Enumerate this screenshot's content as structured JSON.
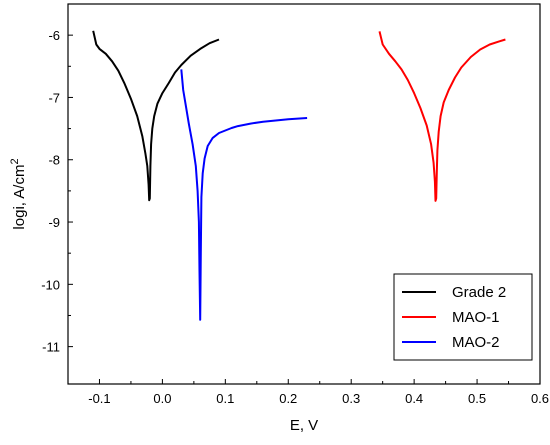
{
  "chart_data": {
    "type": "line",
    "xlabel": "E, V",
    "ylabel": "logi, A/cm",
    "ylabel_sup": "2",
    "xlim": [
      -0.15,
      0.6
    ],
    "ylim": [
      -11.6,
      -5.5
    ],
    "xticks": [
      -0.1,
      0,
      0.1,
      0.2,
      0.3,
      0.4,
      0.5,
      0.6
    ],
    "xtick_labels": [
      "-0.1",
      "0.0",
      "0.1",
      "0.2",
      "0.3",
      "0.4",
      "0.5",
      "0.6"
    ],
    "yticks": [
      -11,
      -10,
      -9,
      -8,
      -7,
      -6
    ],
    "ytick_labels": [
      "-11",
      "-10",
      "-9",
      "-8",
      "-7",
      "-6"
    ],
    "grid": false,
    "legend_position": "bottom-right",
    "series": [
      {
        "name": "Grade 2",
        "color": "#000000",
        "x": [
          -0.11,
          -0.105,
          -0.1,
          -0.09,
          -0.08,
          -0.07,
          -0.06,
          -0.05,
          -0.04,
          -0.032,
          -0.027,
          -0.024,
          -0.022,
          -0.021,
          -0.02,
          -0.019,
          -0.018,
          -0.016,
          -0.013,
          -0.008,
          0.0,
          0.01,
          0.02,
          0.03,
          0.045,
          0.06,
          0.075,
          0.09
        ],
        "y": [
          -5.93,
          -6.15,
          -6.22,
          -6.3,
          -6.42,
          -6.57,
          -6.78,
          -7.02,
          -7.3,
          -7.62,
          -7.9,
          -8.1,
          -8.4,
          -8.65,
          -8.62,
          -8.1,
          -7.75,
          -7.5,
          -7.3,
          -7.1,
          -6.93,
          -6.77,
          -6.6,
          -6.48,
          -6.33,
          -6.22,
          -6.13,
          -6.07
        ]
      },
      {
        "name": "MAO-1",
        "color": "#ff0000",
        "x": [
          0.345,
          0.35,
          0.36,
          0.37,
          0.38,
          0.39,
          0.4,
          0.41,
          0.42,
          0.427,
          0.431,
          0.433,
          0.434,
          0.435,
          0.436,
          0.437,
          0.439,
          0.442,
          0.447,
          0.455,
          0.465,
          0.475,
          0.49,
          0.505,
          0.52,
          0.535,
          0.545
        ],
        "y": [
          -5.94,
          -6.15,
          -6.3,
          -6.42,
          -6.55,
          -6.72,
          -6.93,
          -7.17,
          -7.45,
          -7.75,
          -8.05,
          -8.35,
          -8.66,
          -8.62,
          -8.2,
          -7.85,
          -7.55,
          -7.3,
          -7.08,
          -6.88,
          -6.68,
          -6.52,
          -6.35,
          -6.23,
          -6.15,
          -6.1,
          -6.07
        ]
      },
      {
        "name": "MAO-2",
        "color": "#0000ff",
        "x": [
          0.03,
          0.033,
          0.037,
          0.042,
          0.048,
          0.053,
          0.056,
          0.058,
          0.059,
          0.06,
          0.061,
          0.062,
          0.064,
          0.067,
          0.072,
          0.08,
          0.09,
          0.1,
          0.11,
          0.12,
          0.14,
          0.16,
          0.18,
          0.2,
          0.23
        ],
        "y": [
          -6.55,
          -6.88,
          -7.12,
          -7.42,
          -7.75,
          -8.1,
          -8.5,
          -9.0,
          -9.8,
          -10.57,
          -9.5,
          -8.6,
          -8.22,
          -7.98,
          -7.78,
          -7.65,
          -7.57,
          -7.53,
          -7.49,
          -7.46,
          -7.42,
          -7.39,
          -7.37,
          -7.35,
          -7.33
        ]
      }
    ]
  }
}
